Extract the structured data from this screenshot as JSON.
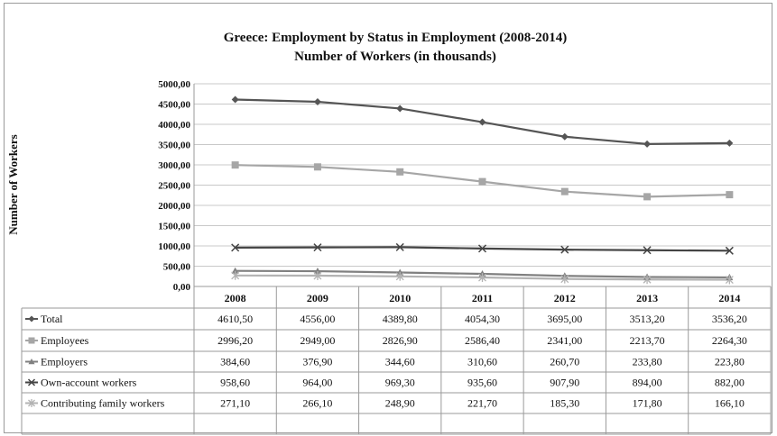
{
  "chart_data": {
    "type": "line",
    "title": "Greece:  Employment by Status in Employment (2008-2014)",
    "subtitle": "Number of Workers (in thousands)",
    "ylabel": "Number of Workers",
    "xlabel": "",
    "ylim": [
      0,
      5000
    ],
    "y_ticks": [
      "0,00",
      "500,00",
      "1000,00",
      "1500,00",
      "2000,00",
      "2500,00",
      "3000,00",
      "3500,00",
      "4000,00",
      "4500,00",
      "5000,00"
    ],
    "y_tick_values": [
      0,
      500,
      1000,
      1500,
      2000,
      2500,
      3000,
      3500,
      4000,
      4500,
      5000
    ],
    "grid": true,
    "legend": "data-table",
    "categories": [
      "2008",
      "2009",
      "2010",
      "2011",
      "2012",
      "2013",
      "2014"
    ],
    "series": [
      {
        "name": "Total",
        "color": "#555555",
        "marker": "diamond",
        "values": [
          4610.5,
          4556.0,
          4389.8,
          4054.3,
          3695.0,
          3513.2,
          3536.2
        ],
        "labels": [
          "4610,50",
          "4556,00",
          "4389,80",
          "4054,30",
          "3695,00",
          "3513,20",
          "3536,20"
        ]
      },
      {
        "name": "Employees",
        "color": "#a6a6a6",
        "marker": "square",
        "values": [
          2996.2,
          2949.0,
          2826.9,
          2586.4,
          2341.0,
          2213.7,
          2264.3
        ],
        "labels": [
          "2996,20",
          "2949,00",
          "2826,90",
          "2586,40",
          "2341,00",
          "2213,70",
          "2264,30"
        ]
      },
      {
        "name": "Employers",
        "color": "#808080",
        "marker": "triangle",
        "values": [
          384.6,
          376.9,
          344.6,
          310.6,
          260.7,
          233.8,
          223.8
        ],
        "labels": [
          "384,60",
          "376,90",
          "344,60",
          "310,60",
          "260,70",
          "233,80",
          "223,80"
        ]
      },
      {
        "name": "Own-account workers",
        "color": "#444444",
        "marker": "x",
        "values": [
          958.6,
          964.0,
          969.3,
          935.6,
          907.9,
          894.0,
          882.0
        ],
        "labels": [
          "958,60",
          "964,00",
          "969,30",
          "935,60",
          "907,90",
          "894,00",
          "882,00"
        ]
      },
      {
        "name": "Contributing family workers",
        "color": "#b3b3b3",
        "marker": "star",
        "values": [
          271.1,
          266.1,
          248.9,
          221.7,
          185.3,
          171.8,
          166.1
        ],
        "labels": [
          "271,10",
          "266,10",
          "248,90",
          "221,70",
          "185,30",
          "171,80",
          "166,10"
        ]
      }
    ]
  }
}
